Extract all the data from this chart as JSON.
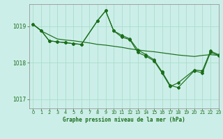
{
  "title": "Graphe pression niveau de la mer (hPa)",
  "background_color": "#cceee8",
  "grid_color": "#aaddcc",
  "line_color": "#1a6e1a",
  "marker_color": "#1a6e1a",
  "xlim": [
    -0.5,
    23
  ],
  "ylim": [
    1016.75,
    1019.6
  ],
  "yticks": [
    1017,
    1018,
    1019
  ],
  "xticks": [
    0,
    1,
    2,
    3,
    4,
    5,
    6,
    7,
    8,
    9,
    10,
    11,
    12,
    13,
    14,
    15,
    16,
    17,
    18,
    19,
    20,
    21,
    22,
    23
  ],
  "series1_x": [
    0,
    1,
    3,
    4,
    5,
    6,
    7,
    8,
    9,
    10,
    11,
    12,
    13,
    14,
    15,
    16,
    17,
    18,
    19,
    20,
    21,
    22,
    23
  ],
  "series1_y": [
    1019.05,
    1018.87,
    1018.65,
    1018.62,
    1018.6,
    1018.57,
    1018.54,
    1018.5,
    1018.48,
    1018.45,
    1018.42,
    1018.38,
    1018.35,
    1018.32,
    1018.3,
    1018.27,
    1018.24,
    1018.21,
    1018.19,
    1018.17,
    1018.2,
    1018.22,
    1018.2
  ],
  "series2_x": [
    0,
    1,
    2,
    3,
    4,
    5,
    6,
    8,
    9,
    10,
    11,
    12,
    13,
    14,
    15,
    16,
    17,
    18,
    20,
    21,
    22,
    23
  ],
  "series2_y": [
    1019.05,
    1018.88,
    1018.6,
    1018.57,
    1018.55,
    1018.52,
    1018.5,
    1019.15,
    1019.42,
    1018.87,
    1018.7,
    1018.63,
    1018.28,
    1018.18,
    1018.05,
    1017.72,
    1017.35,
    1017.45,
    1017.8,
    1017.78,
    1018.32,
    1018.22
  ],
  "series3_x": [
    0,
    1,
    2,
    3,
    4,
    5,
    6,
    8,
    9,
    10,
    11,
    12,
    13,
    14,
    15,
    16,
    17,
    18,
    20,
    21,
    22,
    23
  ],
  "series3_y": [
    1019.05,
    1018.88,
    1018.6,
    1018.57,
    1018.55,
    1018.52,
    1018.5,
    1019.15,
    1019.42,
    1018.87,
    1018.75,
    1018.65,
    1018.35,
    1018.22,
    1018.08,
    1017.75,
    1017.38,
    1017.32,
    1017.78,
    1017.72,
    1018.28,
    1018.2
  ]
}
